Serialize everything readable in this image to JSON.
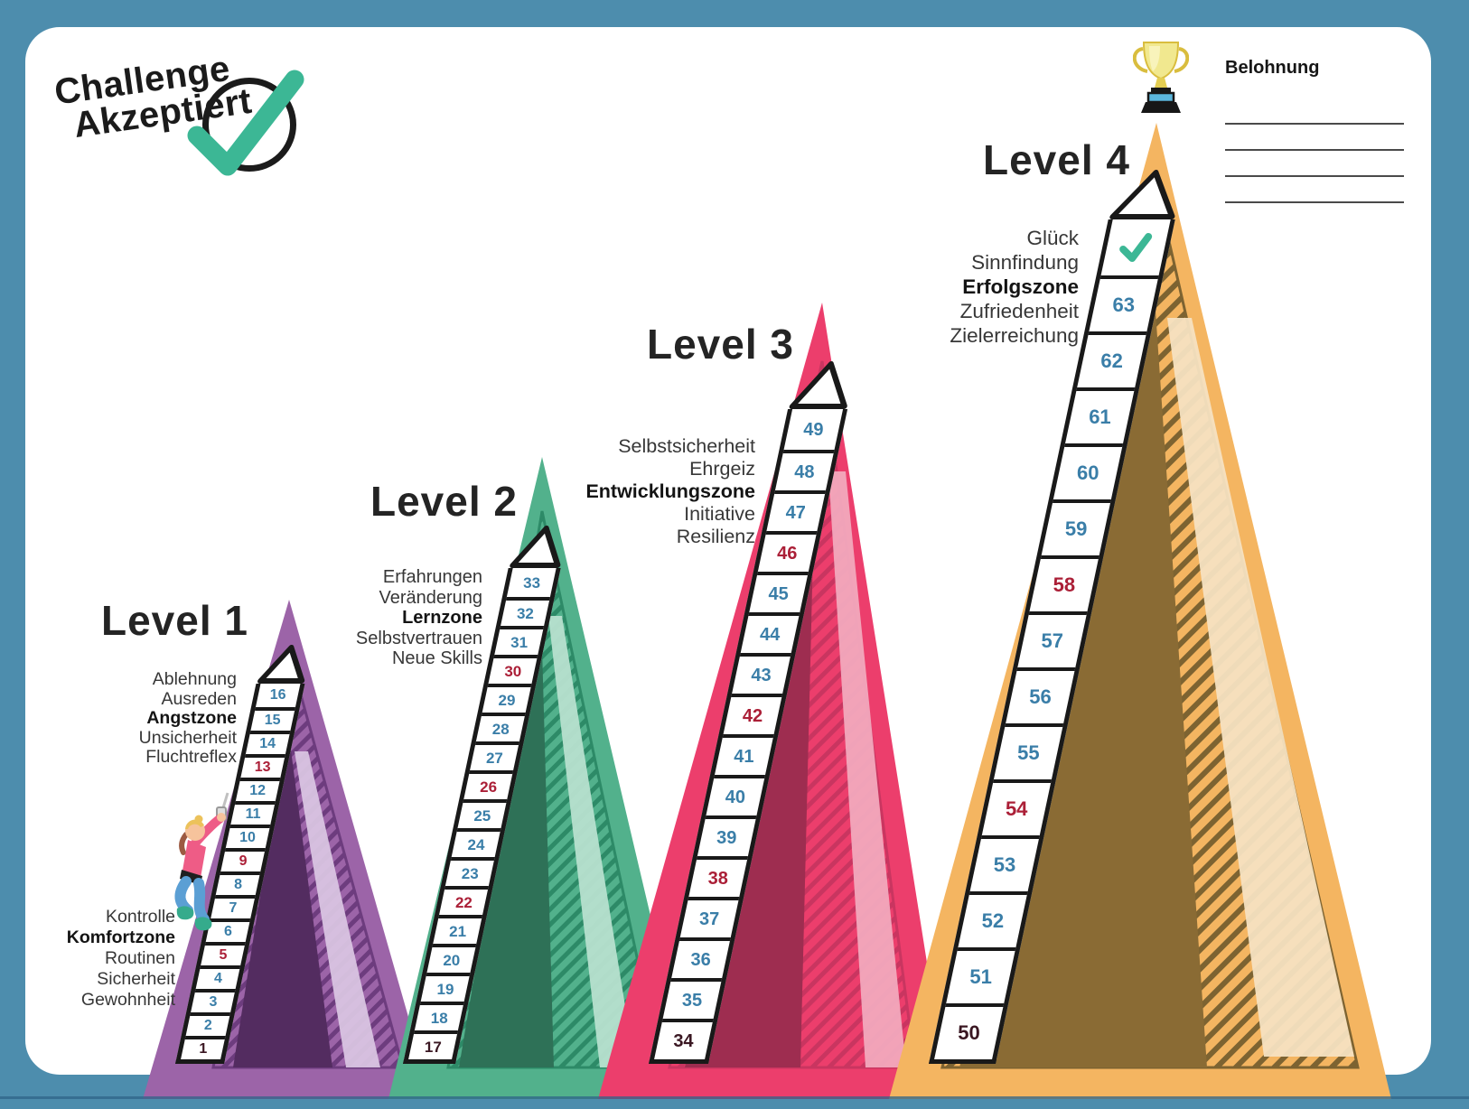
{
  "frame": {
    "border_color": "#4d8dad",
    "sheet_color": "#ffffff"
  },
  "logo": {
    "line1": "Challenge",
    "line2": "Akzeptiert",
    "text_color": "#1b1b1b",
    "check_color": "#3cb795"
  },
  "reward": {
    "label": "Belohnung",
    "blank_line_count": 4,
    "trophy_gold": "#f1e88f",
    "trophy_band_blue": "#5bb6dc"
  },
  "step_colors": {
    "blue": "#3a7ea8",
    "red": "#ab1f37",
    "dark": "#3a1722"
  },
  "summit_check_color": "#3cb795",
  "levels": [
    {
      "title": "Level 1",
      "zone_labels": [
        {
          "text": "Ablehnung",
          "bold": false
        },
        {
          "text": "Ausreden",
          "bold": false
        },
        {
          "text": "Angstzone",
          "bold": true
        },
        {
          "text": "Unsicherheit",
          "bold": false
        },
        {
          "text": "Fluchtreflex",
          "bold": false
        }
      ],
      "base_labels": [
        {
          "text": "Kontrolle",
          "bold": false
        },
        {
          "text": "Komfortzone",
          "bold": true
        },
        {
          "text": "Routinen",
          "bold": false
        },
        {
          "text": "Sicherheit",
          "bold": false
        },
        {
          "text": "Gewohnheit",
          "bold": false
        }
      ],
      "colors": {
        "main": "#9c64a8",
        "hatch": "#6d3c7e",
        "wedge": "#532c60",
        "streak": "#d9c4e2"
      },
      "has_summit_check": false,
      "steps": [
        {
          "n": 1,
          "c": "dark"
        },
        {
          "n": 2,
          "c": "blue"
        },
        {
          "n": 3,
          "c": "blue"
        },
        {
          "n": 4,
          "c": "blue"
        },
        {
          "n": 5,
          "c": "red"
        },
        {
          "n": 6,
          "c": "blue"
        },
        {
          "n": 7,
          "c": "blue"
        },
        {
          "n": 8,
          "c": "blue"
        },
        {
          "n": 9,
          "c": "red"
        },
        {
          "n": 10,
          "c": "blue"
        },
        {
          "n": 11,
          "c": "blue"
        },
        {
          "n": 12,
          "c": "blue"
        },
        {
          "n": 13,
          "c": "red"
        },
        {
          "n": 14,
          "c": "blue"
        },
        {
          "n": 15,
          "c": "blue"
        },
        {
          "n": 16,
          "c": "blue"
        }
      ]
    },
    {
      "title": "Level 2",
      "zone_labels": [
        {
          "text": "Erfahrungen",
          "bold": false
        },
        {
          "text": "Veränderung",
          "bold": false
        },
        {
          "text": "Lernzone",
          "bold": true
        },
        {
          "text": "Selbstvertrauen",
          "bold": false
        },
        {
          "text": "Neue Skills",
          "bold": false
        }
      ],
      "base_labels": [],
      "colors": {
        "main": "#52b18c",
        "hatch": "#2d8a67",
        "wedge": "#2e7157",
        "streak": "#b7e0cf"
      },
      "has_summit_check": false,
      "steps": [
        {
          "n": 17,
          "c": "dark"
        },
        {
          "n": 18,
          "c": "blue"
        },
        {
          "n": 19,
          "c": "blue"
        },
        {
          "n": 20,
          "c": "blue"
        },
        {
          "n": 21,
          "c": "blue"
        },
        {
          "n": 22,
          "c": "red"
        },
        {
          "n": 23,
          "c": "blue"
        },
        {
          "n": 24,
          "c": "blue"
        },
        {
          "n": 25,
          "c": "blue"
        },
        {
          "n": 26,
          "c": "red"
        },
        {
          "n": 27,
          "c": "blue"
        },
        {
          "n": 28,
          "c": "blue"
        },
        {
          "n": 29,
          "c": "blue"
        },
        {
          "n": 30,
          "c": "red"
        },
        {
          "n": 31,
          "c": "blue"
        },
        {
          "n": 32,
          "c": "blue"
        },
        {
          "n": 33,
          "c": "blue"
        }
      ]
    },
    {
      "title": "Level 3",
      "zone_labels": [
        {
          "text": "Selbstsicherheit",
          "bold": false
        },
        {
          "text": "Ehrgeiz",
          "bold": false
        },
        {
          "text": "Entwicklungszone",
          "bold": true
        },
        {
          "text": "Initiative",
          "bold": false
        },
        {
          "text": "Resilienz",
          "bold": false
        }
      ],
      "base_labels": [],
      "colors": {
        "main": "#ec3e6c",
        "hatch": "#c93560",
        "wedge": "#9e2d50",
        "streak": "#f2a9bd"
      },
      "has_summit_check": false,
      "steps": [
        {
          "n": 34,
          "c": "dark"
        },
        {
          "n": 35,
          "c": "blue"
        },
        {
          "n": 36,
          "c": "blue"
        },
        {
          "n": 37,
          "c": "blue"
        },
        {
          "n": 38,
          "c": "red"
        },
        {
          "n": 39,
          "c": "blue"
        },
        {
          "n": 40,
          "c": "blue"
        },
        {
          "n": 41,
          "c": "blue"
        },
        {
          "n": 42,
          "c": "red"
        },
        {
          "n": 43,
          "c": "blue"
        },
        {
          "n": 44,
          "c": "blue"
        },
        {
          "n": 45,
          "c": "blue"
        },
        {
          "n": 46,
          "c": "red"
        },
        {
          "n": 47,
          "c": "blue"
        },
        {
          "n": 48,
          "c": "blue"
        },
        {
          "n": 49,
          "c": "blue"
        }
      ]
    },
    {
      "title": "Level 4",
      "zone_labels": [
        {
          "text": "Glück",
          "bold": false
        },
        {
          "text": "Sinnfindung",
          "bold": false
        },
        {
          "text": "Erfolgszone",
          "bold": true
        },
        {
          "text": "Zufriedenheit",
          "bold": false
        },
        {
          "text": "Zielerreichung",
          "bold": false
        }
      ],
      "base_labels": [],
      "colors": {
        "main": "#f4b561",
        "hatch": "#7d6331",
        "wedge": "#8a6b34",
        "streak": "#f6e2c1"
      },
      "has_summit_check": true,
      "steps": [
        {
          "n": 50,
          "c": "dark"
        },
        {
          "n": 51,
          "c": "blue"
        },
        {
          "n": 52,
          "c": "blue"
        },
        {
          "n": 53,
          "c": "blue"
        },
        {
          "n": 54,
          "c": "red"
        },
        {
          "n": 55,
          "c": "blue"
        },
        {
          "n": 56,
          "c": "blue"
        },
        {
          "n": 57,
          "c": "blue"
        },
        {
          "n": 58,
          "c": "red"
        },
        {
          "n": 59,
          "c": "blue"
        },
        {
          "n": 60,
          "c": "blue"
        },
        {
          "n": 61,
          "c": "blue"
        },
        {
          "n": 62,
          "c": "blue"
        },
        {
          "n": 63,
          "c": "blue"
        }
      ]
    }
  ]
}
